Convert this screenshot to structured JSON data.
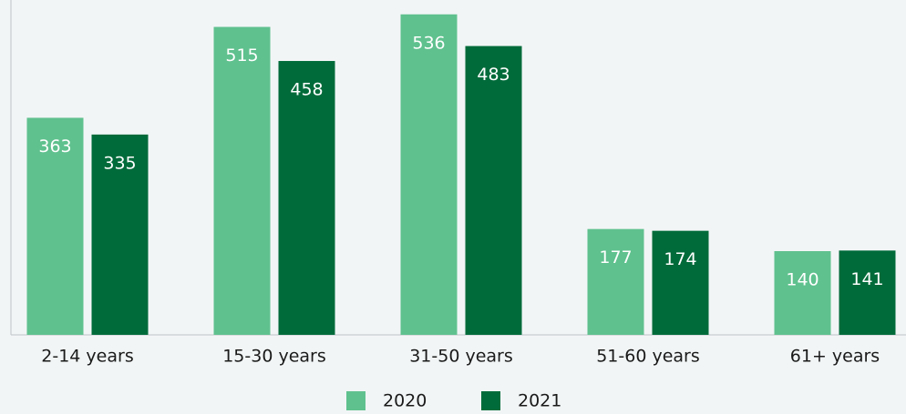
{
  "chart_data": {
    "type": "bar",
    "categories": [
      "2-14 years",
      "15-30 years",
      "31-50 years",
      "51-60 years",
      "61+ years"
    ],
    "series": [
      {
        "name": "2020",
        "color": "#5fc18e",
        "values": [
          363,
          515,
          536,
          177,
          140
        ]
      },
      {
        "name": "2021",
        "color": "#006b3a",
        "values": [
          335,
          458,
          483,
          174,
          141
        ]
      }
    ],
    "ylim": [
      0,
      560
    ]
  }
}
